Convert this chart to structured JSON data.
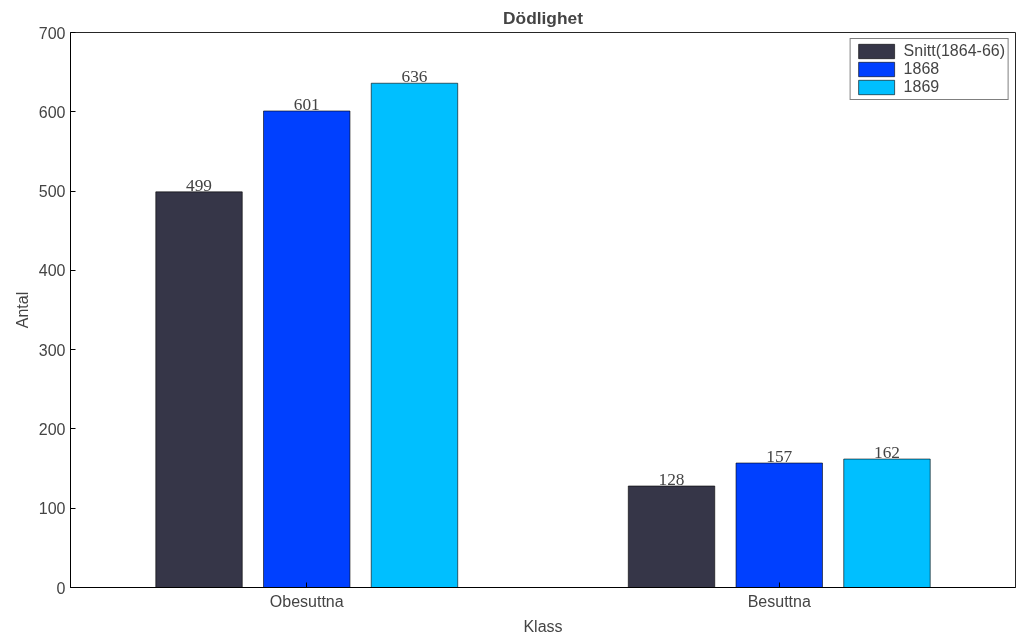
{
  "chart_data": {
    "type": "bar",
    "title": "Dödlighet",
    "xlabel": "Klass",
    "ylabel": "Antal",
    "categories": [
      "Obesuttna",
      "Besuttna"
    ],
    "series": [
      {
        "name": "Snitt(1864-66)",
        "color": "#363648",
        "values": [
          499,
          128
        ]
      },
      {
        "name": "1868",
        "color": "#0040ff",
        "values": [
          601,
          157
        ]
      },
      {
        "name": "1869",
        "color": "#00bfff",
        "values": [
          636,
          162
        ]
      }
    ],
    "ylim": [
      0,
      700
    ],
    "yticks": [
      0,
      100,
      200,
      300,
      400,
      500,
      600,
      700
    ],
    "data_labels": true,
    "grid": false,
    "legend": "top right"
  }
}
